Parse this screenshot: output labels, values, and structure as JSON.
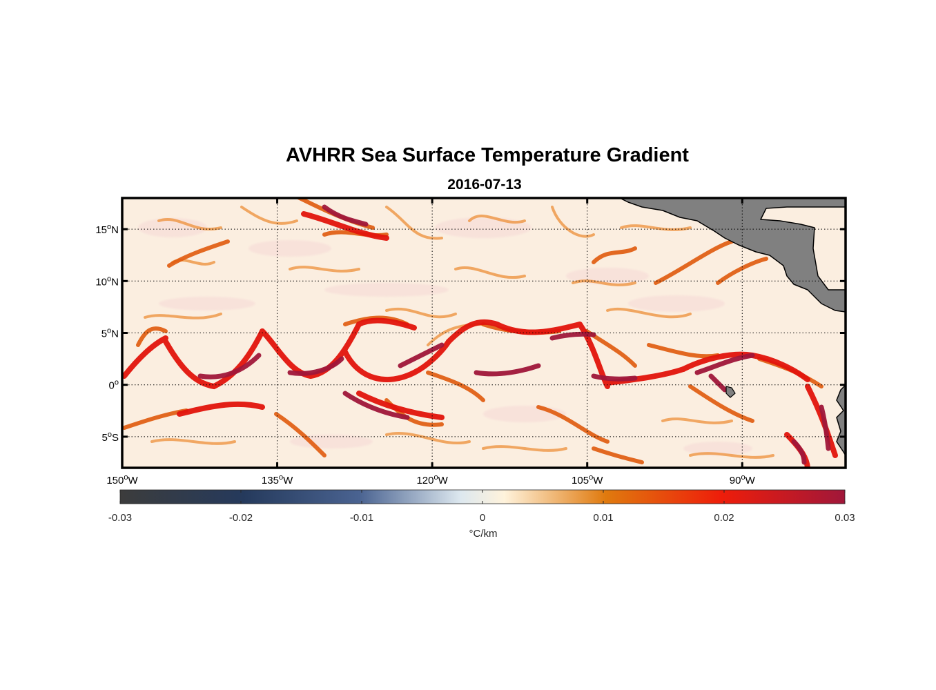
{
  "title": "AVHRR Sea Surface Temperature Gradient",
  "subtitle": "2016-07-13",
  "map": {
    "projection": "equirectangular",
    "lon_range": [
      -150,
      -80
    ],
    "lat_range": [
      -8,
      18
    ],
    "grid": "dotted",
    "land_color": "#808080",
    "lat_ticks": [
      {
        "value": 15,
        "label": "15",
        "deg": "o",
        "hemi": "N"
      },
      {
        "value": 10,
        "label": "10",
        "deg": "o",
        "hemi": "N"
      },
      {
        "value": 5,
        "label": "5",
        "deg": "o",
        "hemi": "N"
      },
      {
        "value": 0,
        "label": "0",
        "deg": "o",
        "hemi": ""
      },
      {
        "value": -5,
        "label": "5",
        "deg": "o",
        "hemi": "S"
      }
    ],
    "lon_ticks": [
      {
        "value": -150,
        "label": "150",
        "deg": "o",
        "hemi": "W"
      },
      {
        "value": -135,
        "label": "135",
        "deg": "o",
        "hemi": "W"
      },
      {
        "value": -120,
        "label": "120",
        "deg": "o",
        "hemi": "W"
      },
      {
        "value": -105,
        "label": "105",
        "deg": "o",
        "hemi": "W"
      },
      {
        "value": -90,
        "label": "90",
        "deg": "o",
        "hemi": "W"
      }
    ]
  },
  "colorbar": {
    "min": -0.03,
    "max": 0.03,
    "ticks": [
      "-0.03",
      "-0.02",
      "-0.01",
      "0",
      "0.01",
      "0.02",
      "0.03"
    ],
    "tick_values": [
      -0.03,
      -0.02,
      -0.01,
      0,
      0.01,
      0.02,
      0.03
    ],
    "label": "°C/km",
    "colors": [
      "#3c3c3c",
      "#253a5c",
      "#4a6391",
      "#dde8ef",
      "#fff3dc",
      "#e07a0e",
      "#ee1d0a",
      "#a0173a"
    ]
  }
}
